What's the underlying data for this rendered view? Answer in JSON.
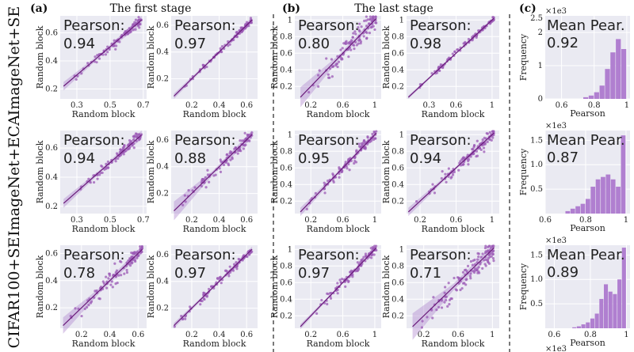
{
  "figure": {
    "panel_letters": [
      "(a)",
      "(b)",
      "(c)"
    ],
    "stage_titles": [
      "The first stage",
      "The last stage"
    ],
    "row_labels": [
      "ImageNet+SE",
      "ImageNet+ECA",
      "CIFAR100+SE"
    ],
    "scatter_xlabel": "Random block",
    "scatter_ylabel": "Random block",
    "hist_xlabel": "Pearson",
    "hist_ylabel": "Frequency",
    "hist_multiplier": "×1e3",
    "scatter_key": "Pearson:",
    "hist_key": "Mean Pear.",
    "colors": {
      "panel_bg": "#eaeaf2",
      "point": "#9b59b6",
      "line": "#6a1b7a",
      "band": "#b48ed0",
      "bar": "#b07fd0"
    }
  },
  "chart_data": [
    {
      "type": "scatter",
      "dataset": "ImageNet+SE",
      "stage": "The first stage",
      "pearson": "0.94",
      "xlim": [
        0.2,
        0.72
      ],
      "ylim": [
        0.13,
        0.72
      ],
      "xticks": [
        0.3,
        0.5,
        0.7
      ],
      "yticks": [
        0.2,
        0.4,
        0.6
      ],
      "band": [
        0.03,
        0.01,
        0.03
      ],
      "seed": 11,
      "n": 90,
      "spread": 0.035
    },
    {
      "type": "scatter",
      "dataset": "ImageNet+SE",
      "stage": "The first stage",
      "pearson": "0.97",
      "xlim": [
        0.05,
        0.68
      ],
      "ylim": [
        0.05,
        0.67
      ],
      "xticks": [
        0.2,
        0.4,
        0.6
      ],
      "yticks": [
        0.2,
        0.4,
        0.6
      ],
      "band": [
        0.02,
        0.008,
        0.02
      ],
      "seed": 12,
      "n": 90,
      "spread": 0.025
    },
    {
      "type": "scatter",
      "dataset": "ImageNet+SE",
      "stage": "The last stage",
      "pearson": "0.80",
      "xlim": [
        0.0,
        1.08
      ],
      "ylim": [
        0.05,
        1.05
      ],
      "xticks": [
        0.2,
        0.6,
        1.0
      ],
      "yticks": [
        0.2,
        0.4,
        0.6,
        0.8,
        1.0
      ],
      "band": [
        0.12,
        0.03,
        0.04
      ],
      "seed": 13,
      "n": 110,
      "spread": 0.14
    },
    {
      "type": "scatter",
      "dataset": "ImageNet+SE",
      "stage": "The last stage",
      "pearson": "0.98",
      "xlim": [
        0.05,
        1.08
      ],
      "ylim": [
        0.05,
        1.05
      ],
      "xticks": [
        0.3,
        0.6,
        1.0
      ],
      "yticks": [
        0.2,
        0.4,
        0.6,
        0.8,
        1.0
      ],
      "band": [
        0.02,
        0.008,
        0.02
      ],
      "seed": 14,
      "n": 100,
      "spread": 0.03
    },
    {
      "type": "scatter",
      "dataset": "ImageNet+ECA",
      "stage": "The first stage",
      "pearson": "0.94",
      "xlim": [
        0.2,
        0.72
      ],
      "ylim": [
        0.15,
        0.72
      ],
      "xticks": [
        0.3,
        0.5,
        0.7
      ],
      "yticks": [
        0.2,
        0.4,
        0.6
      ],
      "band": [
        0.03,
        0.01,
        0.03
      ],
      "seed": 21,
      "n": 90,
      "spread": 0.035
    },
    {
      "type": "scatter",
      "dataset": "ImageNet+ECA",
      "stage": "The first stage",
      "pearson": "0.88",
      "xlim": [
        0.05,
        0.68
      ],
      "ylim": [
        0.05,
        0.67
      ],
      "xticks": [
        0.2,
        0.4,
        0.6
      ],
      "yticks": [
        0.2,
        0.4,
        0.6
      ],
      "band": [
        0.07,
        0.015,
        0.03
      ],
      "seed": 22,
      "n": 100,
      "spread": 0.05
    },
    {
      "type": "scatter",
      "dataset": "ImageNet+ECA",
      "stage": "The last stage",
      "pearson": "0.95",
      "xlim": [
        0.0,
        1.08
      ],
      "ylim": [
        0.05,
        1.05
      ],
      "xticks": [
        0.2,
        0.6,
        1.0
      ],
      "yticks": [
        0.2,
        0.4,
        0.6,
        0.8,
        1.0
      ],
      "band": [
        0.05,
        0.015,
        0.03
      ],
      "seed": 23,
      "n": 110,
      "spread": 0.08
    },
    {
      "type": "scatter",
      "dataset": "ImageNet+ECA",
      "stage": "The last stage",
      "pearson": "0.94",
      "xlim": [
        0.05,
        1.08
      ],
      "ylim": [
        0.05,
        1.05
      ],
      "xticks": [
        0.2,
        0.6,
        1.0
      ],
      "yticks": [
        0.2,
        0.4,
        0.6,
        0.8,
        1.0
      ],
      "band": [
        0.05,
        0.015,
        0.03
      ],
      "seed": 24,
      "n": 110,
      "spread": 0.08
    },
    {
      "type": "scatter",
      "dataset": "CIFAR100+SE",
      "stage": "The first stage",
      "pearson": "0.78",
      "xlim": [
        0.05,
        0.66
      ],
      "ylim": [
        0.05,
        0.66
      ],
      "xticks": [
        0.2,
        0.4,
        0.6
      ],
      "yticks": [
        0.2,
        0.4,
        0.6
      ],
      "band": [
        0.06,
        0.015,
        0.03
      ],
      "seed": 31,
      "n": 100,
      "spread": 0.06
    },
    {
      "type": "scatter",
      "dataset": "CIFAR100+SE",
      "stage": "The first stage",
      "pearson": "0.97",
      "xlim": [
        0.05,
        0.68
      ],
      "ylim": [
        0.05,
        0.67
      ],
      "xticks": [
        0.2,
        0.4,
        0.6
      ],
      "yticks": [
        0.2,
        0.4,
        0.6
      ],
      "band": [
        0.02,
        0.008,
        0.02
      ],
      "seed": 32,
      "n": 100,
      "spread": 0.03
    },
    {
      "type": "scatter",
      "dataset": "CIFAR100+SE",
      "stage": "The last stage",
      "pearson": "0.97",
      "xlim": [
        0.0,
        1.08
      ],
      "ylim": [
        0.05,
        1.05
      ],
      "xticks": [
        0.2,
        0.6,
        1.0
      ],
      "yticks": [
        0.2,
        0.4,
        0.6,
        0.8,
        1.0
      ],
      "band": [
        0.03,
        0.01,
        0.02
      ],
      "seed": 33,
      "n": 110,
      "spread": 0.06
    },
    {
      "type": "scatter",
      "dataset": "CIFAR100+SE",
      "stage": "The last stage",
      "pearson": "0.71",
      "xlim": [
        0.0,
        1.08
      ],
      "ylim": [
        0.05,
        1.05
      ],
      "xticks": [
        0.2,
        0.6,
        1.0
      ],
      "yticks": [
        0.2,
        0.4,
        0.6,
        0.8,
        1.0
      ],
      "band": [
        0.16,
        0.04,
        0.05
      ],
      "seed": 34,
      "n": 120,
      "spread": 0.15
    },
    {
      "type": "bar",
      "dataset": "ImageNet+SE",
      "mean": "0.92",
      "xlim": [
        0.5,
        1.02
      ],
      "ylim": [
        0,
        2.5
      ],
      "yticks": [
        0,
        1,
        2
      ],
      "ytick_labels": [
        "0",
        "1",
        "2"
      ],
      "extra_top_label": "2.5",
      "xticks": [
        0.6,
        0.8,
        1.0
      ],
      "bin_start": 0.6,
      "bin_width": 0.0333,
      "values": [
        0.0,
        0.0,
        0.0,
        0.0,
        0.05,
        0.1,
        0.2,
        0.4,
        0.9,
        1.4,
        1.8,
        1.5
      ]
    },
    {
      "type": "bar",
      "dataset": "ImageNet+ECA",
      "mean": "0.87",
      "xlim": [
        0.6,
        1.02
      ],
      "ylim": [
        0,
        1.7
      ],
      "yticks": [
        0.5,
        1.0,
        1.5
      ],
      "ytick_labels": [
        "0.5",
        "1.0",
        "1.5"
      ],
      "xticks": [
        0.6,
        0.8,
        1.0
      ],
      "bin_start": 0.7,
      "bin_width": 0.025,
      "values": [
        0.05,
        0.1,
        0.15,
        0.2,
        0.3,
        0.55,
        0.7,
        0.75,
        0.8,
        0.7,
        0.55,
        1.6
      ]
    },
    {
      "type": "bar",
      "dataset": "CIFAR100+SE",
      "mean": "0.89",
      "xlim": [
        0.55,
        1.02
      ],
      "ylim": [
        0,
        1.7
      ],
      "yticks": [
        0.5,
        1.0,
        1.5
      ],
      "ytick_labels": [
        "0.5",
        "1.0",
        "1.5"
      ],
      "xticks": [
        0.6,
        0.8,
        1.0
      ],
      "bin_start": 0.7,
      "bin_width": 0.025,
      "values": [
        0.02,
        0.04,
        0.08,
        0.12,
        0.2,
        0.3,
        0.6,
        0.9,
        0.75,
        0.7,
        1.0,
        1.65
      ]
    }
  ]
}
